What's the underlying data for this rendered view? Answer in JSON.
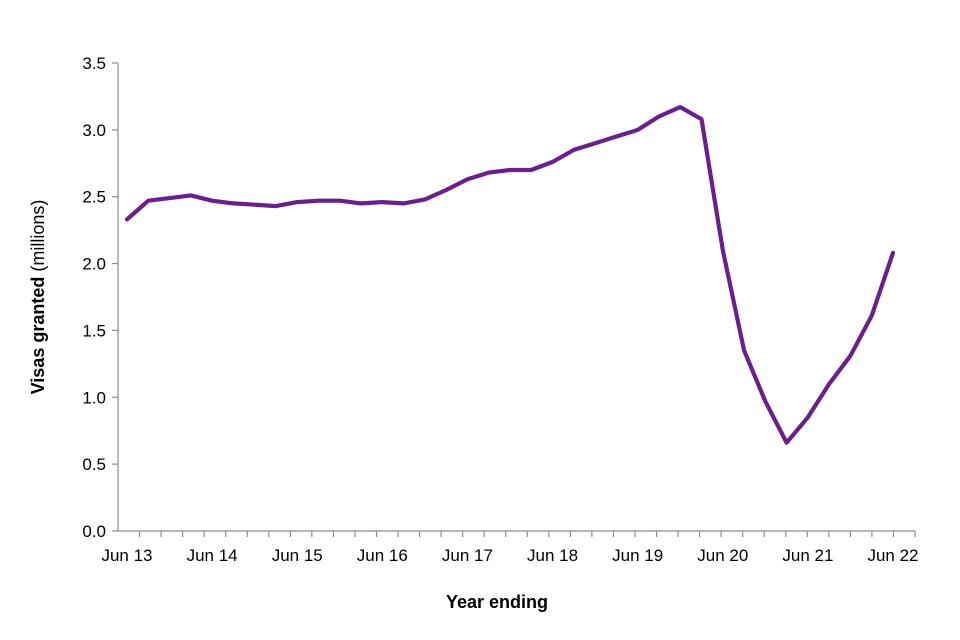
{
  "chart_data": {
    "type": "line",
    "title": "",
    "xlabel": "Year ending",
    "ylabel_bold": "Visas granted",
    "ylabel_rest": " (millions)",
    "ylim": [
      0,
      3.5
    ],
    "y_ticks": [
      "0.0",
      "0.5",
      "1.0",
      "1.5",
      "2.0",
      "2.5",
      "3.0",
      "3.5"
    ],
    "x_tick_labels": [
      "Jun 13",
      "Jun 14",
      "Jun 15",
      "Jun 16",
      "Jun 17",
      "Jun 18",
      "Jun 19",
      "Jun 20",
      "Jun 21",
      "Jun 22"
    ],
    "grid": false,
    "legend": "none",
    "line_color": "#6a1f8a",
    "series": [
      {
        "x": [
          "Jun 13",
          "Sep 13",
          "Dec 13",
          "Mar 14",
          "Jun 14",
          "Sep 14",
          "Dec 14",
          "Mar 15",
          "Jun 15",
          "Sep 15",
          "Dec 15",
          "Mar 16",
          "Jun 16",
          "Sep 16",
          "Dec 16",
          "Mar 17",
          "Jun 17",
          "Sep 17",
          "Dec 17",
          "Mar 18",
          "Jun 18",
          "Sep 18",
          "Dec 18",
          "Mar 19",
          "Jun 19",
          "Sep 19",
          "Dec 19",
          "Mar 20",
          "Jun 20",
          "Sep 20",
          "Dec 20",
          "Mar 21",
          "Jun 21",
          "Sep 21",
          "Dec 21",
          "Mar 22",
          "Jun 22"
        ],
        "values": [
          2.33,
          2.47,
          2.49,
          2.51,
          2.47,
          2.45,
          2.44,
          2.43,
          2.46,
          2.47,
          2.47,
          2.45,
          2.46,
          2.45,
          2.48,
          2.55,
          2.63,
          2.68,
          2.7,
          2.7,
          2.76,
          2.85,
          2.9,
          2.95,
          3.0,
          3.1,
          3.17,
          3.08,
          2.1,
          1.35,
          0.97,
          0.66,
          0.85,
          1.1,
          1.31,
          1.61,
          2.08
        ]
      }
    ]
  }
}
